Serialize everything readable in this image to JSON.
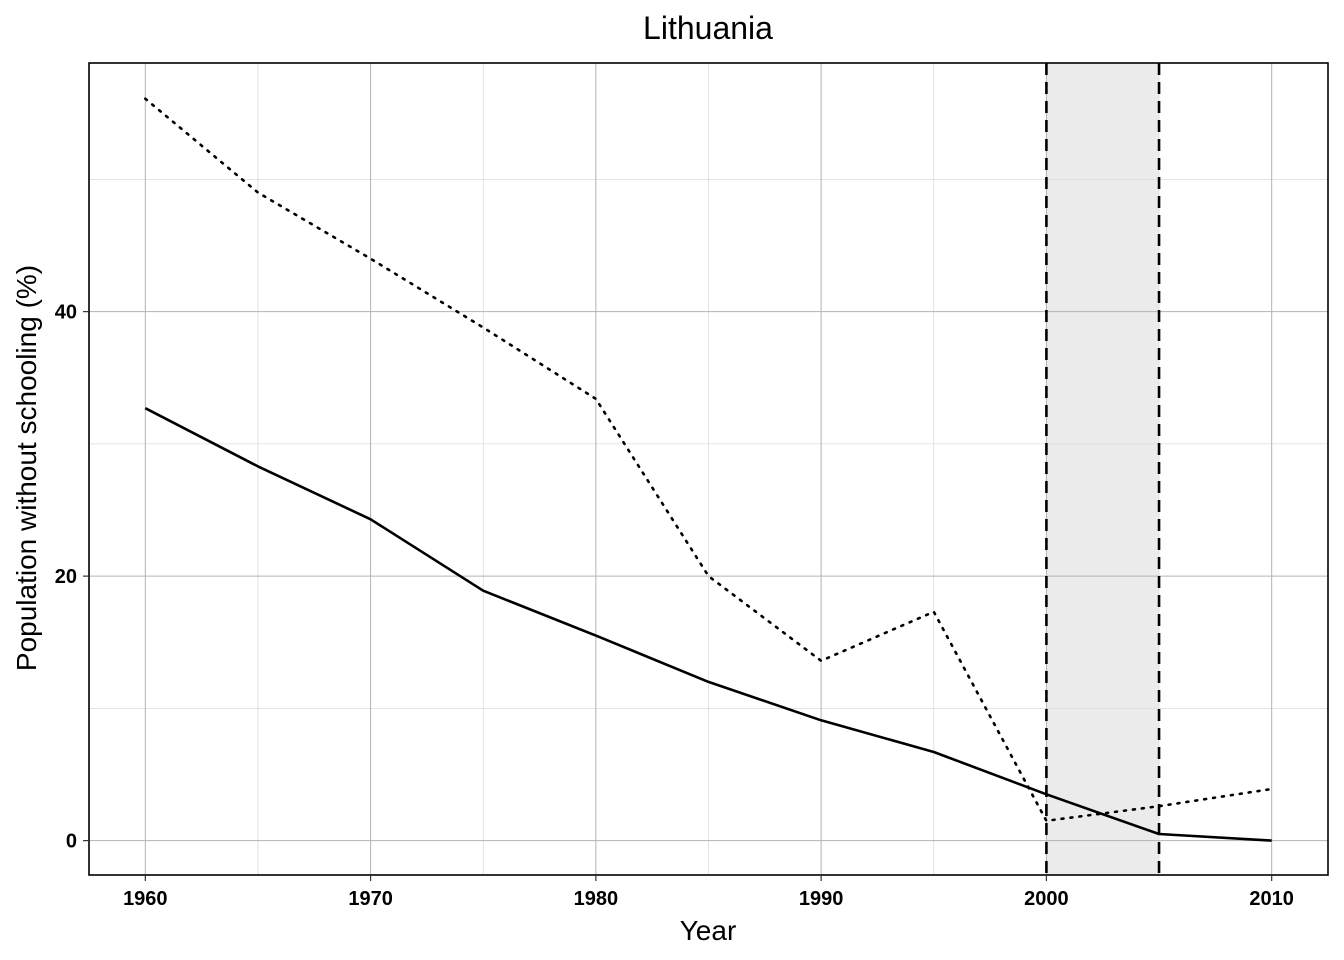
{
  "chart_data": {
    "type": "line",
    "title": "Lithuania",
    "xlabel": "Year",
    "ylabel": "Population without schooling (%)",
    "xlim": [
      1957.5,
      2012.5
    ],
    "ylim": [
      -2.6,
      58.8
    ],
    "x_ticks": [
      1960,
      1970,
      1980,
      1990,
      2000,
      2010
    ],
    "y_ticks": [
      0,
      20,
      40
    ],
    "grid": true,
    "legend": "none",
    "x": [
      1960,
      1965,
      1970,
      1975,
      1980,
      1985,
      1990,
      1995,
      2000,
      2005,
      2010
    ],
    "series": [
      {
        "style": "solid",
        "color": "#000000",
        "values": [
          32.7,
          28.3,
          24.3,
          18.9,
          15.5,
          12.0,
          9.1,
          6.7,
          3.5,
          0.5,
          0.0
        ]
      },
      {
        "style": "dotted",
        "color": "#000000",
        "values": [
          56.1,
          49.0,
          44.0,
          38.8,
          33.4,
          20.0,
          13.6,
          17.3,
          1.5,
          2.6,
          3.9
        ]
      }
    ],
    "shaded_region": {
      "x_start": 2000,
      "x_end": 2005,
      "color": "#ebebeb"
    }
  }
}
